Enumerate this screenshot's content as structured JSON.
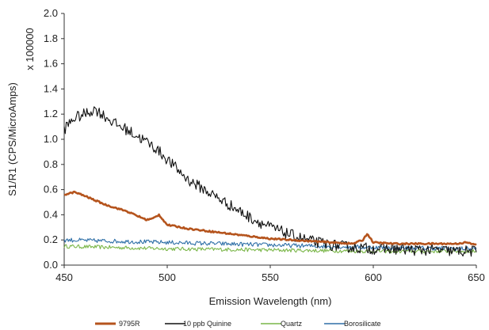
{
  "chart_data": {
    "type": "line",
    "title": "",
    "xlabel": "Emission Wavelength (nm)",
    "ylabel": "S1/R1 (CPS/MicroAmps)",
    "y_multiplier": "x 100000",
    "xlim": [
      450,
      650
    ],
    "ylim": [
      0,
      2.0
    ],
    "x_ticks": [
      "450",
      "500",
      "550",
      "600",
      "650"
    ],
    "y_ticks": [
      "0.0",
      "0.2",
      "0.4",
      "0.6",
      "0.8",
      "1.0",
      "1.2",
      "1.4",
      "1.6",
      "1.8",
      "2.0"
    ],
    "grid": false,
    "legend_position": "bottom",
    "series": [
      {
        "name": "9795R",
        "color": "#b5541d",
        "noise": 0.006,
        "x": [
          450,
          455,
          460,
          470,
          480,
          490,
          493,
          496,
          500,
          510,
          520,
          530,
          540,
          550,
          560,
          570,
          580,
          590,
          595,
          597,
          600,
          610,
          620,
          630,
          640,
          645,
          650
        ],
        "y": [
          0.56,
          0.58,
          0.55,
          0.48,
          0.43,
          0.36,
          0.37,
          0.4,
          0.32,
          0.29,
          0.27,
          0.25,
          0.23,
          0.21,
          0.2,
          0.19,
          0.18,
          0.17,
          0.2,
          0.25,
          0.18,
          0.17,
          0.17,
          0.17,
          0.17,
          0.18,
          0.16
        ]
      },
      {
        "name": "10 ppb Quinine",
        "color": "#111111",
        "noise": 0.045,
        "x": [
          450,
          455,
          460,
          465,
          470,
          475,
          480,
          485,
          490,
          495,
          500,
          505,
          510,
          520,
          530,
          540,
          550,
          560,
          570,
          580,
          590,
          600,
          610,
          620,
          630,
          640,
          650
        ],
        "y": [
          1.08,
          1.17,
          1.2,
          1.24,
          1.18,
          1.12,
          1.08,
          1.03,
          0.98,
          0.92,
          0.84,
          0.76,
          0.68,
          0.58,
          0.48,
          0.38,
          0.3,
          0.24,
          0.19,
          0.16,
          0.14,
          0.13,
          0.13,
          0.12,
          0.12,
          0.11,
          0.11
        ]
      },
      {
        "name": "Quartz",
        "color": "#7ab648",
        "noise": 0.015,
        "x": [
          450,
          500,
          550,
          600,
          650
        ],
        "y": [
          0.15,
          0.13,
          0.12,
          0.11,
          0.11
        ]
      },
      {
        "name": "Borosilicate",
        "color": "#2e6fa7",
        "noise": 0.017,
        "x": [
          450,
          500,
          550,
          600,
          650
        ],
        "y": [
          0.2,
          0.18,
          0.16,
          0.14,
          0.13
        ]
      }
    ]
  }
}
